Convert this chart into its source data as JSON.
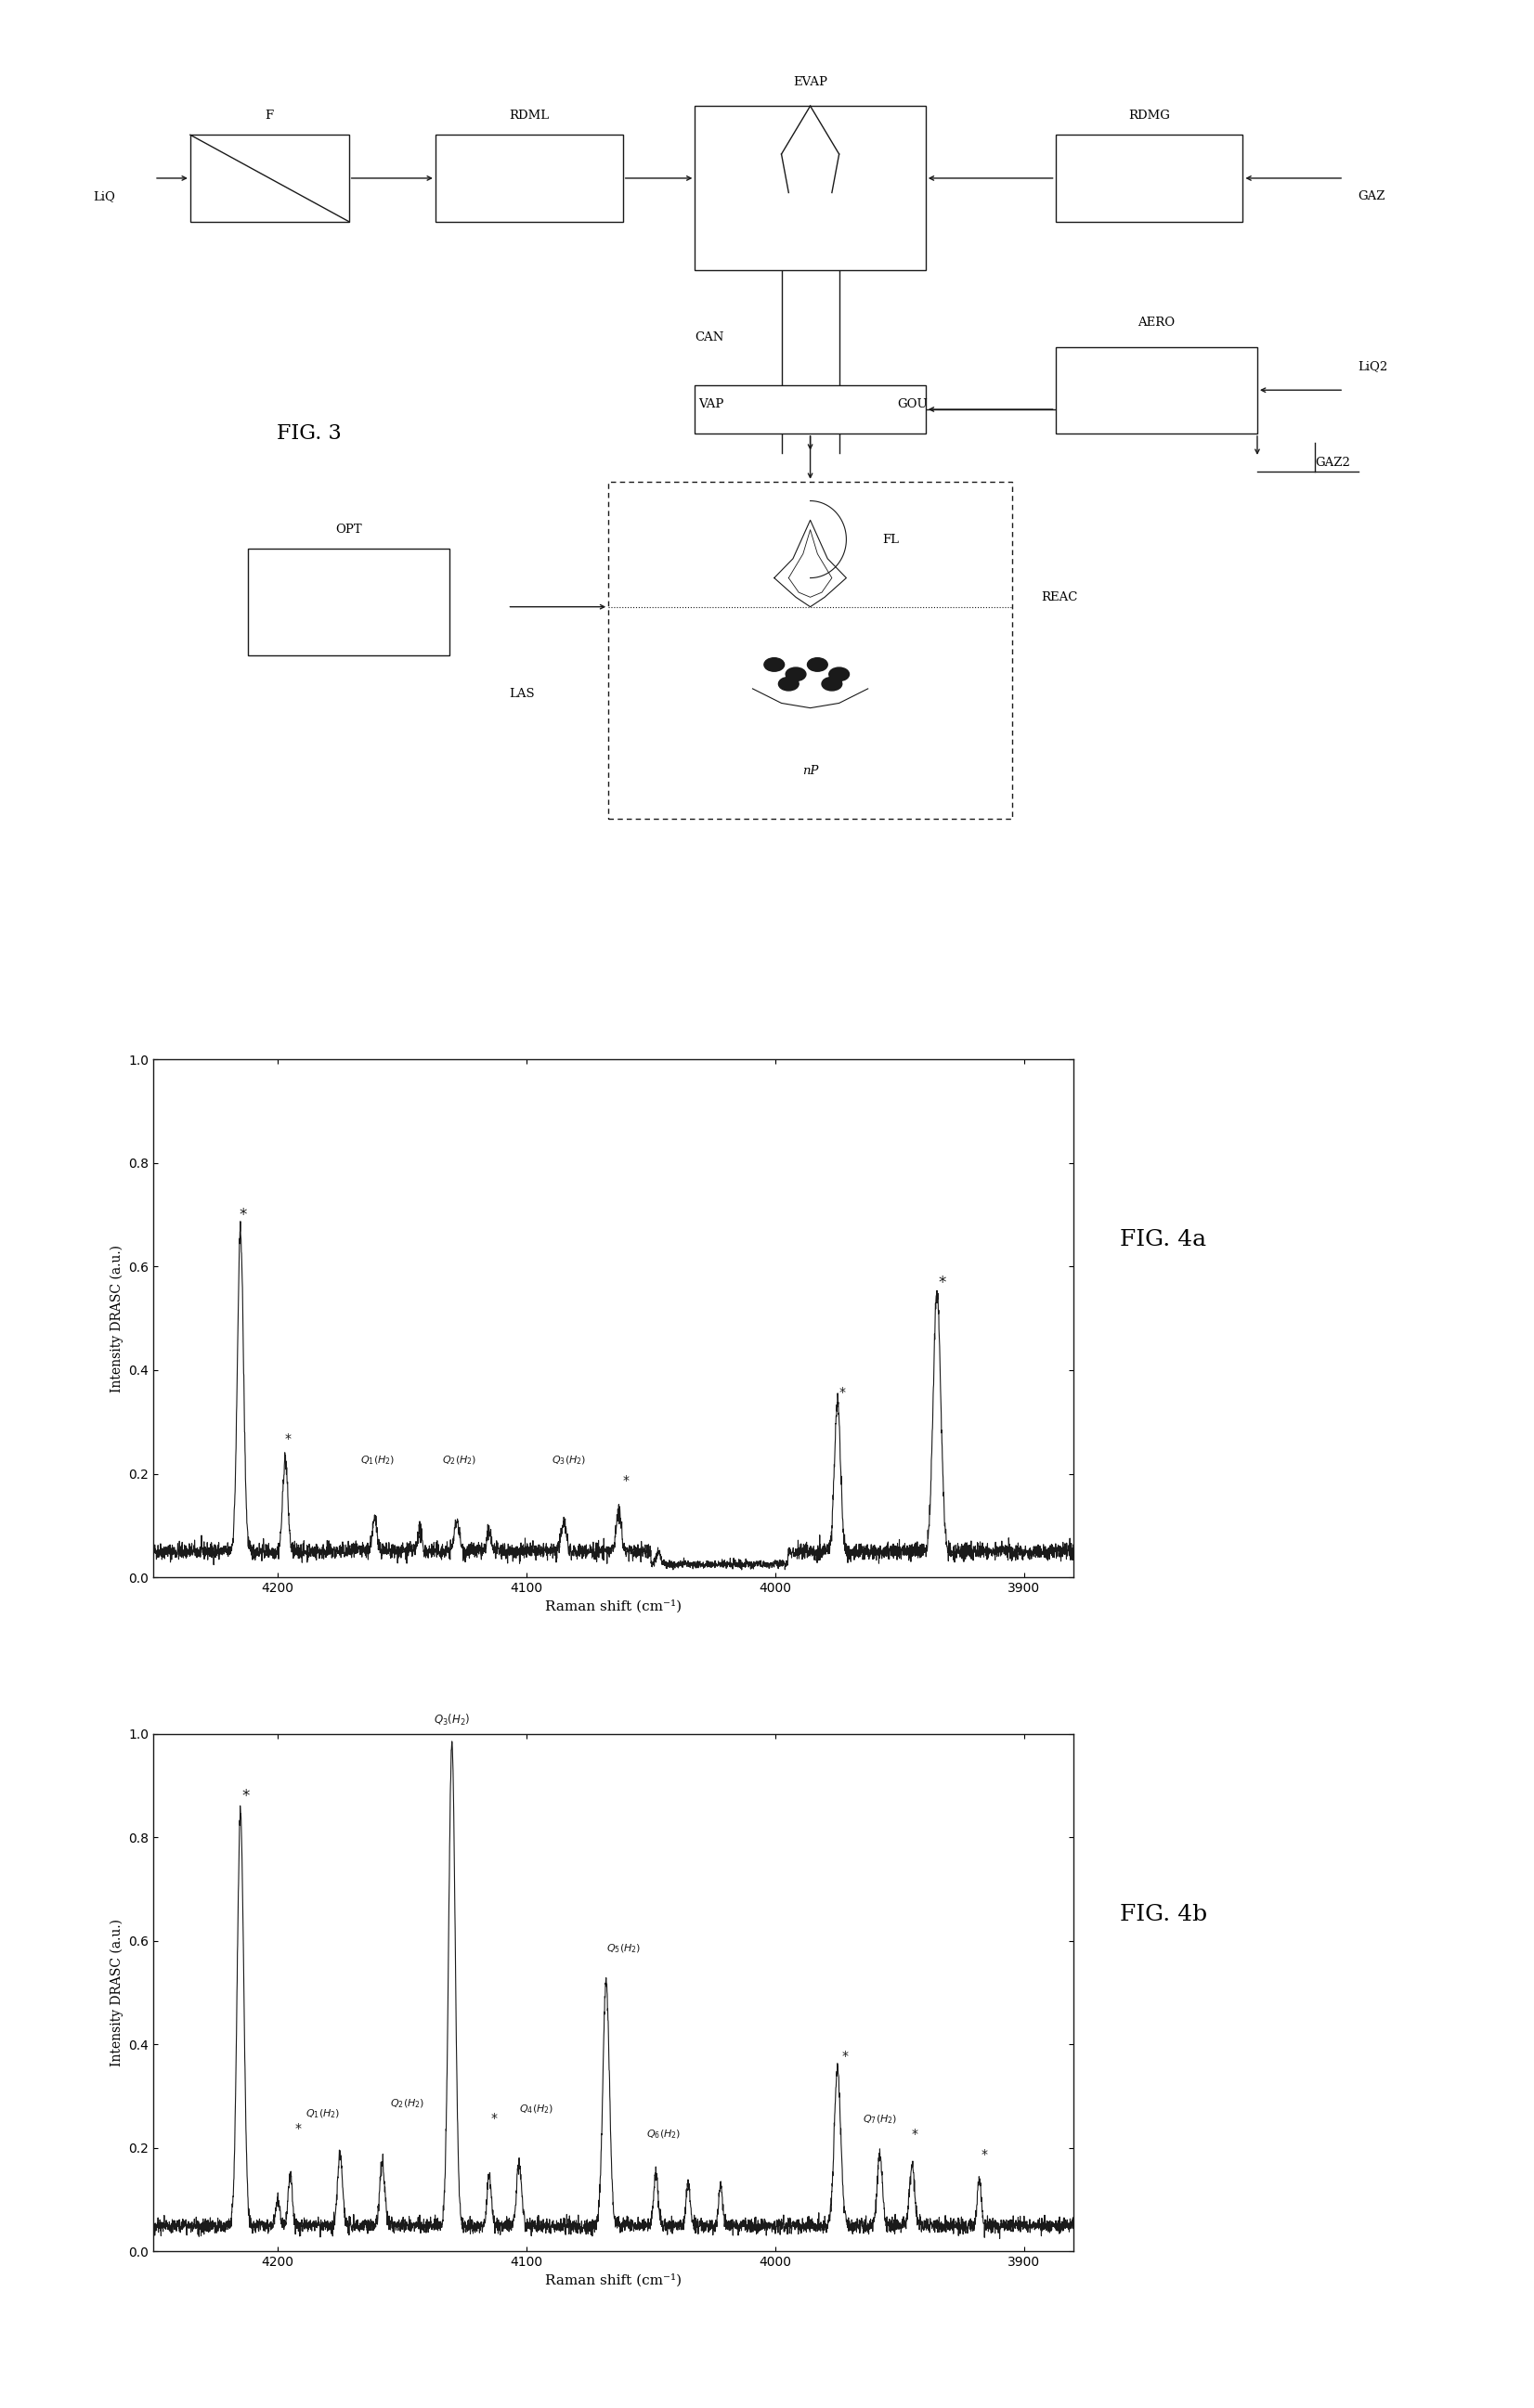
{
  "fig3_title": "FIG. 3",
  "fig4a_title": "FIG. 4a",
  "fig4b_title": "FIG. 4b",
  "ylabel": "Intensity DRASC (a.u.)",
  "xlabel": "Raman shift (cm⁻¹)",
  "ylim": [
    0.0,
    1.0
  ],
  "xlim_left": 4250,
  "xlim_right": 3880,
  "yticks": [
    0.0,
    0.2,
    0.4,
    0.6,
    0.8,
    1.0
  ],
  "xticks": [
    4200,
    4100,
    4000,
    3900
  ],
  "background": "#ffffff",
  "line_color": "#1a1a1a"
}
